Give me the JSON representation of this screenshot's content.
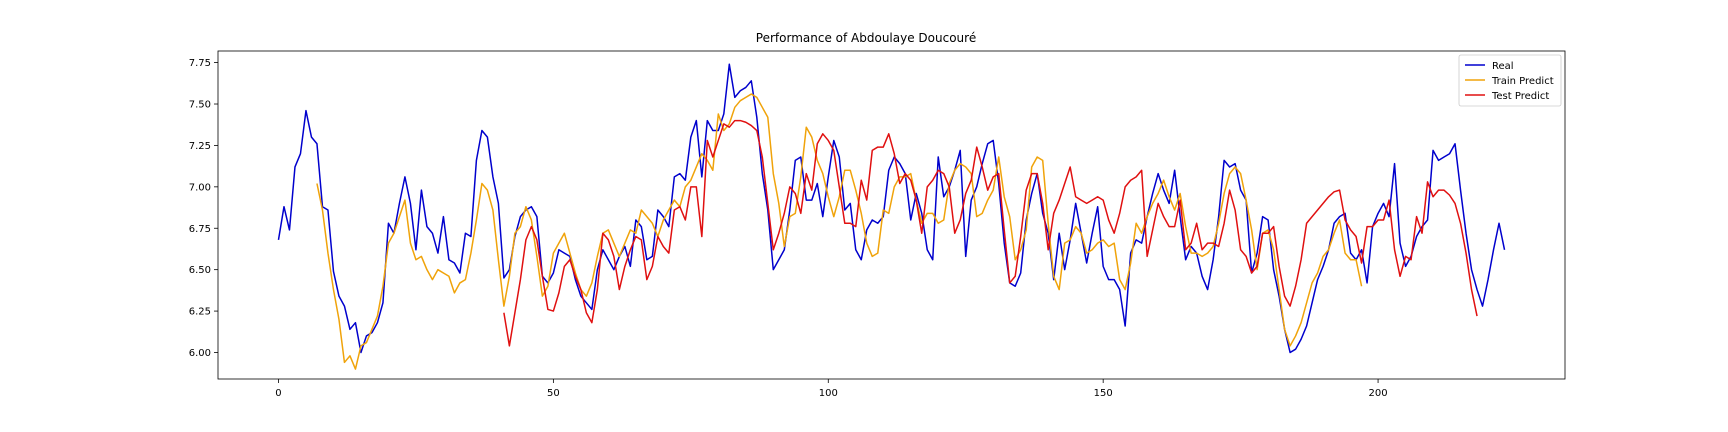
{
  "chart_data": {
    "type": "line",
    "title": "Performance of Abdoulaye Doucouré",
    "xlabel": "",
    "ylabel": "",
    "xlim": [
      -11,
      234
    ],
    "ylim": [
      5.84,
      7.82
    ],
    "xticks": [
      0,
      50,
      100,
      150,
      200
    ],
    "yticks": [
      6.0,
      6.25,
      6.5,
      6.75,
      7.0,
      7.25,
      7.5,
      7.75
    ],
    "ytick_labels": [
      "6.00",
      "6.25",
      "6.50",
      "6.75",
      "7.00",
      "7.25",
      "7.50",
      "7.75"
    ],
    "grid": false,
    "legend": {
      "position": "top-right",
      "entries": [
        "Real",
        "Train Predict",
        "Test Predict"
      ]
    },
    "series": [
      {
        "name": "Real",
        "color": "#0000cd",
        "x_start": 0,
        "values": [
          6.68,
          6.88,
          6.74,
          7.12,
          7.2,
          7.46,
          7.3,
          7.26,
          6.88,
          6.86,
          6.49,
          6.34,
          6.28,
          6.14,
          6.18,
          6.0,
          6.1,
          6.12,
          6.18,
          6.3,
          6.78,
          6.72,
          6.9,
          7.06,
          6.9,
          6.62,
          6.98,
          6.76,
          6.72,
          6.6,
          6.82,
          6.56,
          6.54,
          6.48,
          6.72,
          6.7,
          7.16,
          7.34,
          7.3,
          7.06,
          6.9,
          6.45,
          6.5,
          6.7,
          6.82,
          6.86,
          6.88,
          6.82,
          6.46,
          6.42,
          6.48,
          6.62,
          6.6,
          6.58,
          6.44,
          6.34,
          6.3,
          6.26,
          6.5,
          6.62,
          6.56,
          6.5,
          6.58,
          6.64,
          6.52,
          6.8,
          6.76,
          6.56,
          6.58,
          6.86,
          6.82,
          6.76,
          7.06,
          7.08,
          7.04,
          7.3,
          7.4,
          7.06,
          7.4,
          7.34,
          7.34,
          7.44,
          7.74,
          7.54,
          7.58,
          7.6,
          7.64,
          7.42,
          7.08,
          6.86,
          6.5,
          6.56,
          6.62,
          6.86,
          7.16,
          7.18,
          6.92,
          6.92,
          7.02,
          6.82,
          7.06,
          7.28,
          7.18,
          6.86,
          6.9,
          6.62,
          6.56,
          6.74,
          6.8,
          6.78,
          6.82,
          7.1,
          7.18,
          7.14,
          7.08,
          6.8,
          6.96,
          6.84,
          6.62,
          6.56,
          7.18,
          6.94,
          7.0,
          7.1,
          7.22,
          6.58,
          6.92,
          7.0,
          7.14,
          7.26,
          7.28,
          7.02,
          6.66,
          6.42,
          6.4,
          6.48,
          6.8,
          6.96,
          7.08,
          6.84,
          6.72,
          6.44,
          6.72,
          6.5,
          6.68,
          6.9,
          6.72,
          6.54,
          6.72,
          6.88,
          6.52,
          6.44,
          6.44,
          6.38,
          6.16,
          6.6,
          6.68,
          6.66,
          6.82,
          6.96,
          7.08,
          6.98,
          6.9,
          7.1,
          6.82,
          6.56,
          6.64,
          6.6,
          6.46,
          6.38,
          6.56,
          6.82,
          7.16,
          7.12,
          7.14,
          6.98,
          6.92,
          6.48,
          6.6,
          6.82,
          6.8,
          6.5,
          6.34,
          6.14,
          6.0,
          6.02,
          6.08,
          6.16,
          6.3,
          6.44,
          6.52,
          6.62,
          6.78,
          6.82,
          6.84,
          6.6,
          6.56,
          6.62,
          6.42,
          6.76,
          6.84,
          6.9,
          6.82,
          7.14,
          6.66,
          6.52,
          6.58,
          6.7,
          6.76,
          6.8,
          7.22,
          7.16,
          7.18,
          7.2,
          7.26,
          6.98,
          6.72,
          6.5,
          6.38,
          6.28,
          6.44,
          6.62,
          6.78,
          6.62
        ]
      },
      {
        "name": "Train Predict",
        "color": "#f0a30a",
        "x_start": 7,
        "values": [
          7.02,
          6.86,
          6.6,
          6.38,
          6.2,
          5.94,
          5.98,
          5.9,
          6.04,
          6.06,
          6.14,
          6.22,
          6.4,
          6.66,
          6.72,
          6.82,
          6.92,
          6.66,
          6.56,
          6.58,
          6.5,
          6.44,
          6.5,
          6.48,
          6.46,
          6.36,
          6.42,
          6.44,
          6.6,
          6.8,
          7.02,
          6.98,
          6.86,
          6.56,
          6.28,
          6.46,
          6.72,
          6.76,
          6.88,
          6.8,
          6.58,
          6.34,
          6.4,
          6.6,
          6.66,
          6.72,
          6.6,
          6.48,
          6.38,
          6.34,
          6.42,
          6.58,
          6.72,
          6.74,
          6.66,
          6.58,
          6.66,
          6.74,
          6.72,
          6.86,
          6.82,
          6.78,
          6.7,
          6.8,
          6.86,
          6.92,
          6.88,
          7.0,
          7.04,
          7.12,
          7.2,
          7.16,
          7.1,
          7.44,
          7.34,
          7.38,
          7.48,
          7.52,
          7.54,
          7.56,
          7.54,
          7.48,
          7.42,
          7.08,
          6.9,
          6.64,
          6.82,
          6.84,
          7.06,
          7.36,
          7.3,
          7.16,
          7.08,
          6.94,
          6.82,
          6.94,
          7.1,
          7.1,
          6.98,
          6.84,
          6.66,
          6.58,
          6.6,
          6.86,
          6.84,
          7.0,
          7.06,
          7.06,
          7.08,
          6.92,
          6.78,
          6.84,
          6.84,
          6.78,
          6.8,
          7.02,
          7.1,
          7.14,
          7.12,
          7.08,
          6.82,
          6.84,
          6.92,
          6.98,
          7.18,
          6.94,
          6.82,
          6.56,
          6.62,
          6.74,
          7.12,
          7.18,
          7.16,
          6.78,
          6.46,
          6.38,
          6.66,
          6.68,
          6.76,
          6.72,
          6.6,
          6.62,
          6.66,
          6.68,
          6.64,
          6.66,
          6.44,
          6.38,
          6.54,
          6.78,
          6.72,
          6.82,
          6.9,
          6.96,
          7.04,
          6.94,
          6.86,
          6.96,
          6.76,
          6.6,
          6.6,
          6.58,
          6.6,
          6.64,
          6.78,
          6.96,
          7.08,
          7.12,
          7.08,
          6.92,
          6.74,
          6.5,
          6.72,
          6.74,
          6.62,
          6.38,
          6.14,
          6.04,
          6.1,
          6.18,
          6.3,
          6.42,
          6.48,
          6.58,
          6.62,
          6.72,
          6.8,
          6.6,
          6.56,
          6.56,
          6.4
        ]
      },
      {
        "name": "Test Predict",
        "color": "#e01010",
        "x_start": 41,
        "values": [
          6.24,
          6.04,
          6.24,
          6.44,
          6.68,
          6.76,
          6.68,
          6.46,
          6.26,
          6.25,
          6.36,
          6.52,
          6.56,
          6.46,
          6.38,
          6.24,
          6.18,
          6.38,
          6.72,
          6.68,
          6.58,
          6.38,
          6.52,
          6.62,
          6.7,
          6.68,
          6.44,
          6.52,
          6.7,
          6.64,
          6.6,
          6.86,
          6.88,
          6.8,
          7.0,
          7.0,
          6.7,
          7.28,
          7.18,
          7.28,
          7.38,
          7.36,
          7.4,
          7.4,
          7.39,
          7.37,
          7.34,
          7.18,
          6.9,
          6.62,
          6.72,
          6.84,
          7.0,
          6.96,
          6.84,
          7.08,
          6.98,
          7.26,
          7.32,
          7.28,
          7.22,
          7.0,
          6.78,
          6.78,
          6.76,
          7.04,
          6.92,
          7.22,
          7.24,
          7.24,
          7.32,
          7.2,
          7.02,
          7.08,
          7.04,
          6.92,
          6.72,
          7.0,
          7.04,
          7.1,
          7.08,
          7.0,
          6.72,
          6.8,
          6.96,
          7.04,
          7.24,
          7.12,
          6.98,
          7.06,
          7.08,
          6.74,
          6.42,
          6.46,
          6.7,
          6.98,
          7.08,
          7.08,
          6.9,
          6.62,
          6.84,
          6.92,
          7.02,
          7.12,
          6.94,
          6.92,
          6.9,
          6.92,
          6.94,
          6.92,
          6.8,
          6.72,
          6.84,
          7.0,
          7.04,
          7.06,
          7.1,
          6.58,
          6.74,
          6.9,
          6.82,
          6.76,
          6.76,
          6.92,
          6.62,
          6.66,
          6.78,
          6.62,
          6.66,
          6.66,
          6.64,
          6.78,
          6.98,
          6.86,
          6.62,
          6.58,
          6.48,
          6.52,
          6.72,
          6.72,
          6.76,
          6.52,
          6.34,
          6.28,
          6.4,
          6.56,
          6.78,
          6.82,
          6.86,
          6.9,
          6.94,
          6.97,
          6.98,
          6.8,
          6.74,
          6.7,
          6.54,
          6.76,
          6.76,
          6.8,
          6.8,
          6.92,
          6.62,
          6.46,
          6.58,
          6.56,
          6.82,
          6.72,
          7.03,
          6.94,
          6.98,
          6.98,
          6.95,
          6.9,
          6.78,
          6.6,
          6.38,
          6.22
        ]
      }
    ]
  }
}
